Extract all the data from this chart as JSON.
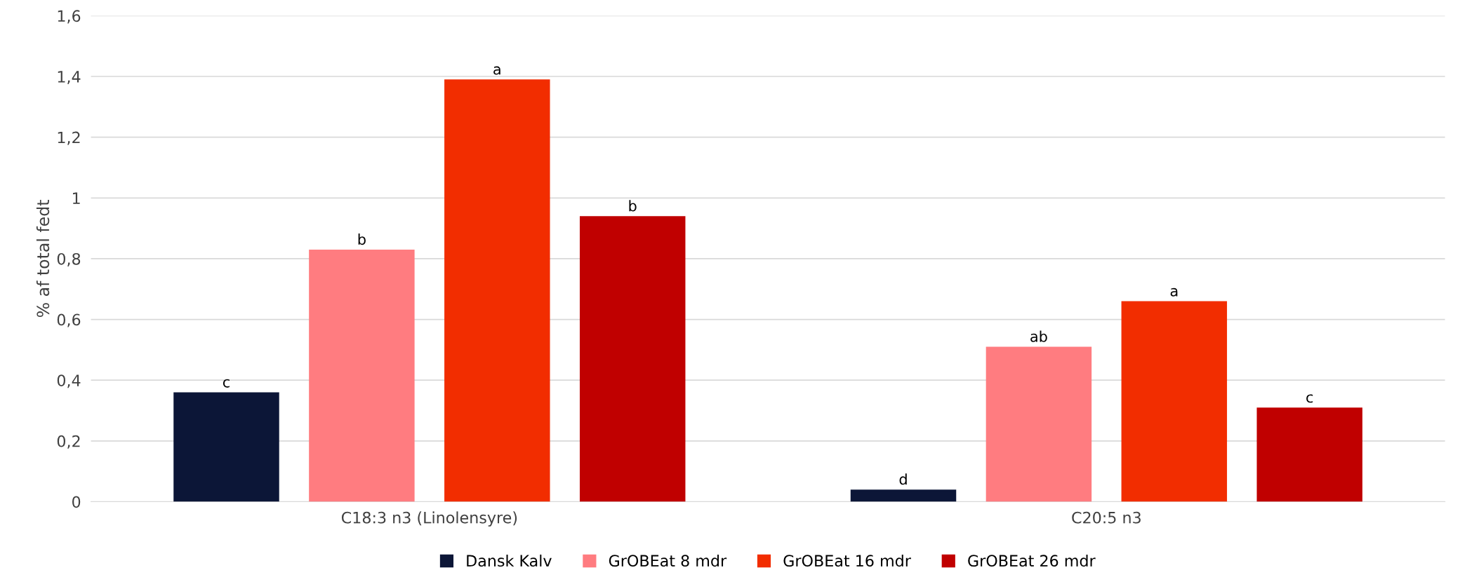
{
  "chart_data": {
    "type": "bar",
    "ylabel": "% af total fedt",
    "categories": [
      "C18:3 n3 (Linolensyre)",
      "C20:5 n3"
    ],
    "series": [
      {
        "name": "Dansk Kalv",
        "color": "#0c1637",
        "values": [
          0.36,
          0.04
        ],
        "value_labels": [
          "c",
          "d"
        ]
      },
      {
        "name": "GrOBEat 8 mdr",
        "color": "#ff7c80",
        "values": [
          0.83,
          0.51
        ],
        "value_labels": [
          "b",
          "ab"
        ]
      },
      {
        "name": "GrOBEat 16 mdr",
        "color": "#f22d00",
        "values": [
          1.39,
          0.66
        ],
        "value_labels": [
          "a",
          "a"
        ]
      },
      {
        "name": "GrOBEat 26 mdr",
        "color": "#c00000",
        "values": [
          0.94,
          0.31
        ],
        "value_labels": [
          "b",
          "c"
        ]
      }
    ],
    "ylim": [
      0,
      1.6
    ],
    "yticks": [
      0,
      {
        "value": 0.2,
        "label": "0,2"
      },
      {
        "value": 0.4,
        "label": "0,4"
      },
      {
        "value": 0.6,
        "label": "0,6"
      },
      {
        "value": 0.8,
        "label": "0,8"
      },
      1,
      {
        "value": 1.2,
        "label": "1,2"
      },
      {
        "value": 1.4,
        "label": "1,4"
      },
      {
        "value": 1.6,
        "label": "1,6"
      }
    ],
    "grid": "y",
    "legend": "bottom"
  }
}
